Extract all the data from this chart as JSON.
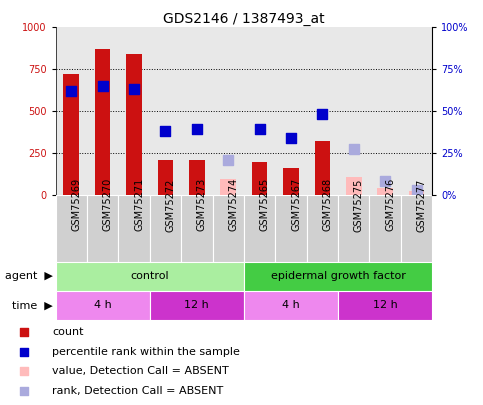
{
  "title": "GDS2146 / 1387493_at",
  "samples": [
    "GSM75269",
    "GSM75270",
    "GSM75271",
    "GSM75272",
    "GSM75273",
    "GSM75274",
    "GSM75265",
    "GSM75267",
    "GSM75268",
    "GSM75275",
    "GSM75276",
    "GSM75277"
  ],
  "count_present": [
    720,
    870,
    840,
    205,
    205,
    0,
    195,
    160,
    320,
    0,
    0,
    0
  ],
  "count_absent": [
    0,
    0,
    0,
    0,
    0,
    95,
    0,
    0,
    0,
    105,
    40,
    20
  ],
  "rank_present": [
    62,
    65,
    63,
    38,
    39,
    0,
    39,
    34,
    48,
    0,
    0,
    0
  ],
  "rank_absent": [
    0,
    0,
    0,
    0,
    0,
    21,
    0,
    0,
    0,
    27,
    8,
    3
  ],
  "agent_groups": [
    {
      "label": "control",
      "start": 0,
      "end": 6,
      "color": "#aaeea0"
    },
    {
      "label": "epidermal growth factor",
      "start": 6,
      "end": 12,
      "color": "#44cc44"
    }
  ],
  "time_groups": [
    {
      "label": "4 h",
      "start": 0,
      "end": 3,
      "color": "#ee88ee"
    },
    {
      "label": "12 h",
      "start": 3,
      "end": 6,
      "color": "#cc33cc"
    },
    {
      "label": "4 h",
      "start": 6,
      "end": 9,
      "color": "#ee88ee"
    },
    {
      "label": "12 h",
      "start": 9,
      "end": 12,
      "color": "#cc33cc"
    }
  ],
  "ylim_left": [
    0,
    1000
  ],
  "ylim_right": [
    0,
    100
  ],
  "yticks_left": [
    0,
    250,
    500,
    750,
    1000
  ],
  "yticks_right": [
    0,
    25,
    50,
    75,
    100
  ],
  "yticklabels_left": [
    "0",
    "250",
    "500",
    "750",
    "1000"
  ],
  "yticklabels_right": [
    "0%",
    "25%",
    "50%",
    "75%",
    "100%"
  ],
  "color_bar_present": "#cc1111",
  "color_bar_absent": "#ffbbbb",
  "color_rank_present": "#0000cc",
  "color_rank_absent": "#aaaadd",
  "title_fontsize": 10,
  "tick_fontsize": 7,
  "label_fontsize": 8,
  "legend_fontsize": 8,
  "background_color": "#ffffff",
  "plot_bg_color": "#e8e8e8",
  "rank_marker_size": 55
}
